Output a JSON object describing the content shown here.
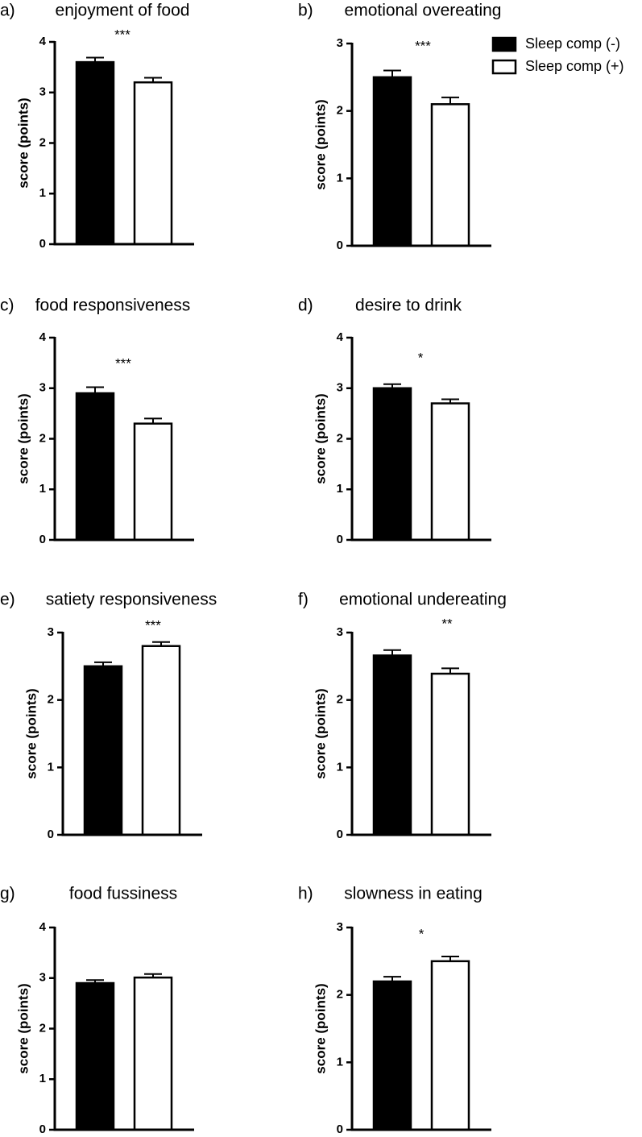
{
  "legend": [
    {
      "name": "Sleep comp (-)",
      "color": "#000000"
    },
    {
      "name": "Sleep comp (+)",
      "color": "#ffffff"
    }
  ],
  "chart_data": [
    {
      "type": "bar",
      "panel_label": "a)",
      "title": "enjoyment of food",
      "ylabel": "score (points)",
      "annotation": "***",
      "ylim": [
        0,
        4
      ],
      "yticks": [
        0,
        1,
        2,
        3,
        4
      ],
      "series": [
        {
          "color": "#000000",
          "values": [
            3.6
          ],
          "errors": [
            0.09
          ]
        },
        {
          "color": "#ffffff",
          "values": [
            3.2
          ],
          "errors": [
            0.09
          ]
        }
      ]
    },
    {
      "type": "bar",
      "panel_label": "b)",
      "title": "emotional overeating",
      "ylabel": "score (points)",
      "annotation": "***",
      "ylim": [
        0,
        3
      ],
      "yticks": [
        0,
        1,
        2,
        3
      ],
      "series": [
        {
          "color": "#000000",
          "values": [
            2.5
          ],
          "errors": [
            0.1
          ]
        },
        {
          "color": "#ffffff",
          "values": [
            2.1
          ],
          "errors": [
            0.1
          ]
        }
      ]
    },
    {
      "type": "bar",
      "panel_label": "c)",
      "title": "food responsiveness",
      "ylabel": "score (points)",
      "annotation": "***",
      "ylim": [
        0,
        4
      ],
      "yticks": [
        0,
        1,
        2,
        3,
        4
      ],
      "series": [
        {
          "color": "#000000",
          "values": [
            2.9
          ],
          "errors": [
            0.12
          ]
        },
        {
          "color": "#ffffff",
          "values": [
            2.3
          ],
          "errors": [
            0.1
          ]
        }
      ]
    },
    {
      "type": "bar",
      "panel_label": "d)",
      "title": "desire to drink",
      "ylabel": "score (points)",
      "annotation": "*",
      "ylim": [
        0,
        4
      ],
      "yticks": [
        0,
        1,
        2,
        3,
        4
      ],
      "series": [
        {
          "color": "#000000",
          "values": [
            3.0
          ],
          "errors": [
            0.08
          ]
        },
        {
          "color": "#ffffff",
          "values": [
            2.7
          ],
          "errors": [
            0.08
          ]
        }
      ]
    },
    {
      "type": "bar",
      "panel_label": "e)",
      "title": "satiety responsiveness",
      "ylabel": "score (points)",
      "annotation": "***",
      "ylim": [
        0,
        3
      ],
      "yticks": [
        0,
        1,
        2,
        3
      ],
      "series": [
        {
          "color": "#000000",
          "values": [
            2.5
          ],
          "errors": [
            0.06
          ]
        },
        {
          "color": "#ffffff",
          "values": [
            2.8
          ],
          "errors": [
            0.06
          ]
        }
      ]
    },
    {
      "type": "bar",
      "panel_label": "f)",
      "title": "emotional undereating",
      "ylabel": "score (points)",
      "annotation": "**",
      "ylim": [
        0,
        3
      ],
      "yticks": [
        0,
        1,
        2,
        3
      ],
      "series": [
        {
          "color": "#000000",
          "values": [
            2.66
          ],
          "errors": [
            0.08
          ]
        },
        {
          "color": "#ffffff",
          "values": [
            2.39
          ],
          "errors": [
            0.08
          ]
        }
      ]
    },
    {
      "type": "bar",
      "panel_label": "g)",
      "title": "food fussiness",
      "ylabel": "score (points)",
      "ylim": [
        0,
        4
      ],
      "yticks": [
        0,
        1,
        2,
        3,
        4
      ],
      "series": [
        {
          "color": "#000000",
          "values": [
            2.9
          ],
          "errors": [
            0.06
          ]
        },
        {
          "color": "#ffffff",
          "values": [
            3.01
          ],
          "errors": [
            0.07
          ]
        }
      ]
    },
    {
      "type": "bar",
      "panel_label": "h)",
      "title": "slowness in eating",
      "ylabel": "score (points)",
      "annotation": "*",
      "ylim": [
        0,
        3
      ],
      "yticks": [
        0,
        1,
        2,
        3
      ],
      "series": [
        {
          "color": "#000000",
          "values": [
            2.2
          ],
          "errors": [
            0.07
          ]
        },
        {
          "color": "#ffffff",
          "values": [
            2.5
          ],
          "errors": [
            0.07
          ]
        }
      ]
    }
  ]
}
